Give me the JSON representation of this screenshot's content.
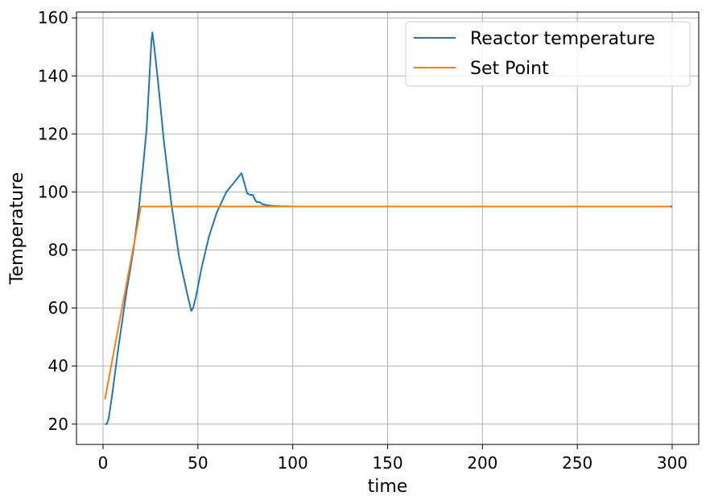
{
  "chart_data": {
    "type": "line",
    "title": "",
    "xlabel": "time",
    "ylabel": "Temperature",
    "xlim": [
      -14,
      314
    ],
    "ylim": [
      13,
      162
    ],
    "xticks": [
      0,
      50,
      100,
      150,
      200,
      250,
      300
    ],
    "yticks": [
      20,
      40,
      60,
      80,
      100,
      120,
      140,
      160
    ],
    "grid": true,
    "legend_position": "top-right",
    "series": [
      {
        "name": "Reactor temperature",
        "color": "#1f77b4",
        "x": [
          1,
          2,
          3,
          5,
          8,
          12,
          16,
          19,
          21,
          23,
          24.5,
          25.5,
          26,
          27,
          29,
          32,
          36,
          40,
          44,
          46.5,
          47.5,
          49,
          52,
          56,
          60,
          65,
          70,
          73,
          74.5,
          76,
          77.5,
          79,
          80,
          81,
          82.5,
          84,
          86,
          88,
          90,
          93,
          97,
          100,
          120,
          150,
          200,
          250,
          300
        ],
        "y": [
          20,
          20,
          22,
          31,
          46,
          64,
          80,
          95,
          108,
          122,
          140,
          152,
          155,
          150,
          138,
          118,
          96,
          78,
          66,
          59,
          60,
          64,
          74,
          85,
          93,
          100,
          104,
          106.5,
          103,
          99.5,
          99,
          99,
          97.5,
          96.5,
          96.5,
          95.8,
          95.5,
          95.3,
          95.2,
          95.1,
          95.05,
          95,
          95,
          95,
          95,
          95,
          95
        ]
      },
      {
        "name": "Set Point",
        "color": "#ff7f0e",
        "x": [
          1,
          20,
          299
        ],
        "y": [
          28.5,
          95,
          95
        ]
      }
    ]
  }
}
